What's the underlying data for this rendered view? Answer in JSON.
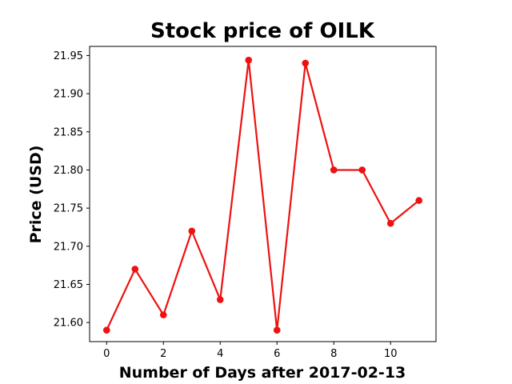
{
  "chart_data": {
    "type": "line",
    "title": "Stock price of OILK",
    "xlabel": "Number of Days after 2017-02-13",
    "ylabel": "Price (USD)",
    "x": [
      0,
      1,
      2,
      3,
      4,
      5,
      6,
      7,
      8,
      9,
      10,
      11
    ],
    "series": [
      {
        "values": [
          21.59,
          21.67,
          21.61,
          21.72,
          21.63,
          21.944,
          21.59,
          21.94,
          21.8,
          21.8,
          21.73,
          21.76
        ],
        "color": "#ee1111",
        "marker": "circle"
      }
    ],
    "xlim": [
      -0.6,
      11.6
    ],
    "ylim": [
      21.575,
      21.962
    ],
    "xticks": [
      0,
      2,
      4,
      6,
      8,
      10
    ],
    "xtick_labels": [
      "0",
      "2",
      "4",
      "6",
      "8",
      "10"
    ],
    "yticks": [
      21.6,
      21.65,
      21.7,
      21.75,
      21.8,
      21.85,
      21.9,
      21.95
    ],
    "ytick_labels": [
      "21.60",
      "21.65",
      "21.70",
      "21.75",
      "21.80",
      "21.85",
      "21.90",
      "21.95"
    ],
    "grid": false,
    "legend": "none"
  }
}
